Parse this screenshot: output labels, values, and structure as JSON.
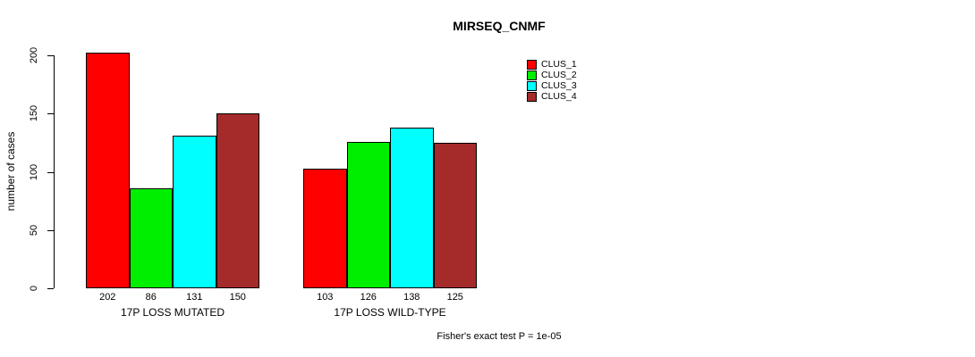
{
  "title": "MIRSEQ_CNMF",
  "footer": "Fisher's exact test P = 1e-05",
  "chart_data": {
    "type": "bar",
    "title": "MIRSEQ_CNMF",
    "xlabel": "",
    "ylabel": "number of cases",
    "ylim": [
      0,
      200
    ],
    "yticks": [
      0,
      50,
      100,
      150,
      200
    ],
    "categories": [
      "17P LOSS MUTATED",
      "17P LOSS WILD-TYPE"
    ],
    "series": [
      {
        "name": "CLUS_1",
        "color": "#FF0000",
        "values": [
          202,
          103
        ]
      },
      {
        "name": "CLUS_2",
        "color": "#00EE00",
        "values": [
          86,
          126
        ]
      },
      {
        "name": "CLUS_3",
        "color": "#00FFFF",
        "values": [
          131,
          138
        ]
      },
      {
        "name": "CLUS_4",
        "color": "#A52A2A",
        "values": [
          150,
          125
        ]
      }
    ],
    "bar_value_labels": true,
    "grid": false,
    "legend_position": "top-right",
    "annotation": "Fisher's exact test P = 1e-05"
  }
}
